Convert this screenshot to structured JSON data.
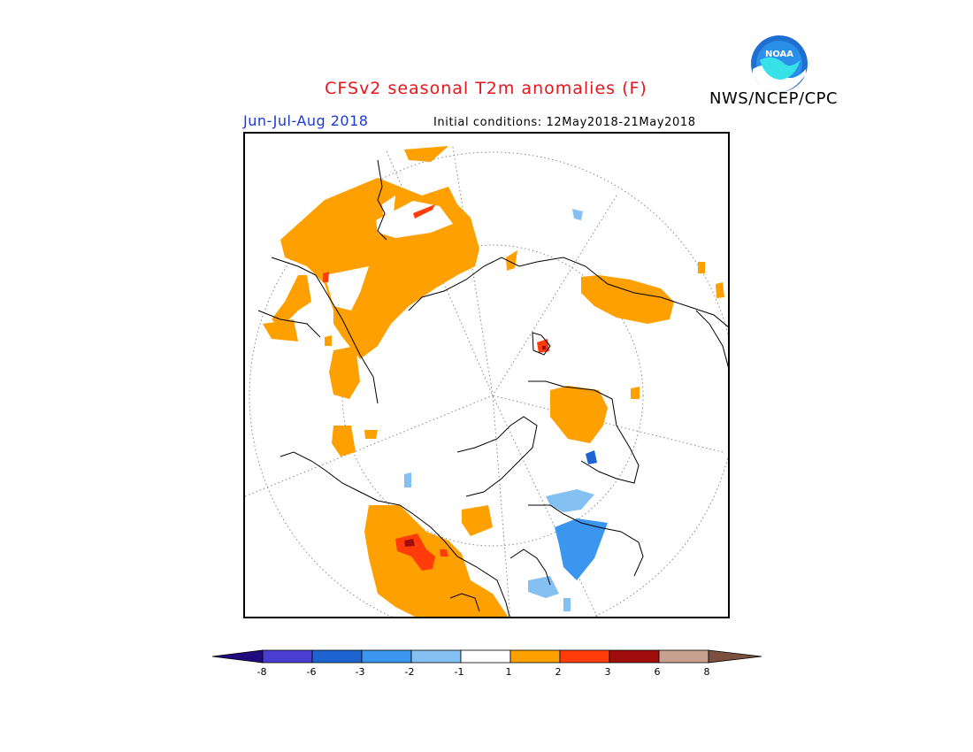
{
  "title": "CFSv2 seasonal T2m anomalies (F)",
  "agency": "NWS/NCEP/CPC",
  "logo_text": "NOAA",
  "period": "Jun-Jul-Aug 2018",
  "initial_conditions": "Initial conditions: 12May2018-21May2018",
  "colorbar": {
    "colors": [
      "#200a80",
      "#4a3ed1",
      "#1e64d0",
      "#3a96ee",
      "#84c1f2",
      "#ffffff",
      "#fea000",
      "#ff3c0a",
      "#a00d0d",
      "#c8a090",
      "#7a5040"
    ],
    "ticks": [
      "-8",
      "-6",
      "-3",
      "-2",
      "-1",
      "1",
      "2",
      "3",
      "6",
      "8"
    ]
  },
  "map": {
    "projection": "north polar stereographic",
    "colors": {
      "light_warm": "#fea000",
      "warm": "#ff3c0a",
      "very_warm": "#a00d0d",
      "light_cool": "#84c1f2",
      "cool": "#3a96ee",
      "cooler": "#1e64d0"
    }
  }
}
